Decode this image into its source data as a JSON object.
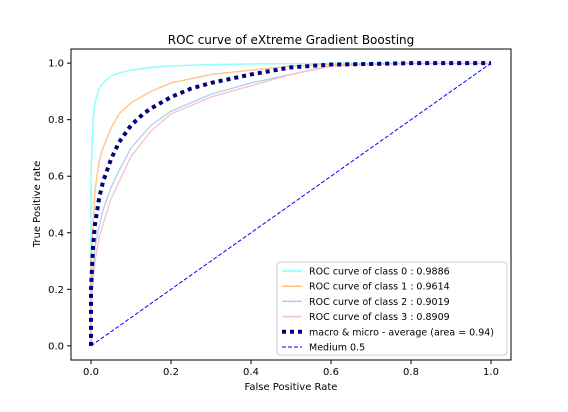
{
  "chart_data": {
    "type": "line",
    "title": "ROC curve of eXtreme Gradient Boosting",
    "xlabel": "False Positive Rate",
    "ylabel": "True Positive rate",
    "xlim": [
      -0.05,
      1.05
    ],
    "ylim": [
      -0.05,
      1.05
    ],
    "xticks": [
      "0.0",
      "0.2",
      "0.4",
      "0.6",
      "0.8",
      "1.0"
    ],
    "yticks": [
      "0.0",
      "0.2",
      "0.4",
      "0.6",
      "0.8",
      "1.0"
    ],
    "legend_position": "lower-right",
    "series": [
      {
        "name": "ROC curve of class 0 : 0.9886",
        "color": "#7fffff",
        "style": "solid",
        "x": [
          0,
          0.0,
          0.005,
          0.01,
          0.02,
          0.03,
          0.05,
          0.07,
          0.1,
          0.15,
          0.2,
          0.3,
          0.4,
          0.6,
          0.8,
          1.0
        ],
        "y": [
          0,
          0.6,
          0.8,
          0.86,
          0.91,
          0.93,
          0.955,
          0.965,
          0.975,
          0.985,
          0.99,
          0.995,
          0.997,
          0.999,
          1.0,
          1.0
        ]
      },
      {
        "name": "ROC curve of class 1 : 0.9614",
        "color": "#ffbf7f",
        "style": "solid",
        "x": [
          0,
          0.0,
          0.01,
          0.02,
          0.03,
          0.05,
          0.07,
          0.1,
          0.15,
          0.2,
          0.3,
          0.4,
          0.5,
          0.6,
          0.8,
          1.0
        ],
        "y": [
          0,
          0.3,
          0.55,
          0.65,
          0.7,
          0.77,
          0.82,
          0.86,
          0.9,
          0.93,
          0.96,
          0.975,
          0.99,
          0.995,
          1.0,
          1.0
        ]
      },
      {
        "name": "ROC curve of class 2 : 0.9019",
        "color": "#aaccee",
        "style": "solid",
        "x": [
          0,
          0.0,
          0.01,
          0.02,
          0.03,
          0.05,
          0.07,
          0.1,
          0.15,
          0.2,
          0.25,
          0.3,
          0.4,
          0.5,
          0.6,
          0.8,
          1.0
        ],
        "y": [
          0,
          0.2,
          0.35,
          0.42,
          0.48,
          0.56,
          0.62,
          0.7,
          0.78,
          0.83,
          0.86,
          0.89,
          0.93,
          0.96,
          0.99,
          1.0,
          1.0
        ]
      },
      {
        "name": "ROC curve of class 3 : 0.8909",
        "color": "#f5bfc8",
        "style": "solid",
        "x": [
          0,
          0.0,
          0.01,
          0.02,
          0.03,
          0.05,
          0.07,
          0.1,
          0.15,
          0.2,
          0.25,
          0.3,
          0.4,
          0.5,
          0.6,
          0.8,
          1.0
        ],
        "y": [
          0,
          0.15,
          0.3,
          0.38,
          0.43,
          0.52,
          0.58,
          0.67,
          0.76,
          0.82,
          0.85,
          0.88,
          0.92,
          0.96,
          0.99,
          1.0,
          1.0
        ]
      },
      {
        "name": "macro & micro - average (area = 0.94)",
        "color": "#000080",
        "style": "dotted",
        "x": [
          0,
          0.0,
          0.005,
          0.01,
          0.02,
          0.03,
          0.05,
          0.07,
          0.1,
          0.13,
          0.15,
          0.2,
          0.25,
          0.3,
          0.4,
          0.5,
          0.6,
          0.7,
          0.8,
          1.0
        ],
        "y": [
          0,
          0.2,
          0.35,
          0.43,
          0.52,
          0.58,
          0.66,
          0.72,
          0.78,
          0.82,
          0.84,
          0.88,
          0.91,
          0.93,
          0.96,
          0.985,
          0.995,
          0.997,
          1.0,
          1.0
        ]
      },
      {
        "name": "Medium 0.5",
        "color": "#0000ff",
        "style": "dashed",
        "x": [
          0,
          1
        ],
        "y": [
          0,
          1
        ]
      }
    ]
  }
}
